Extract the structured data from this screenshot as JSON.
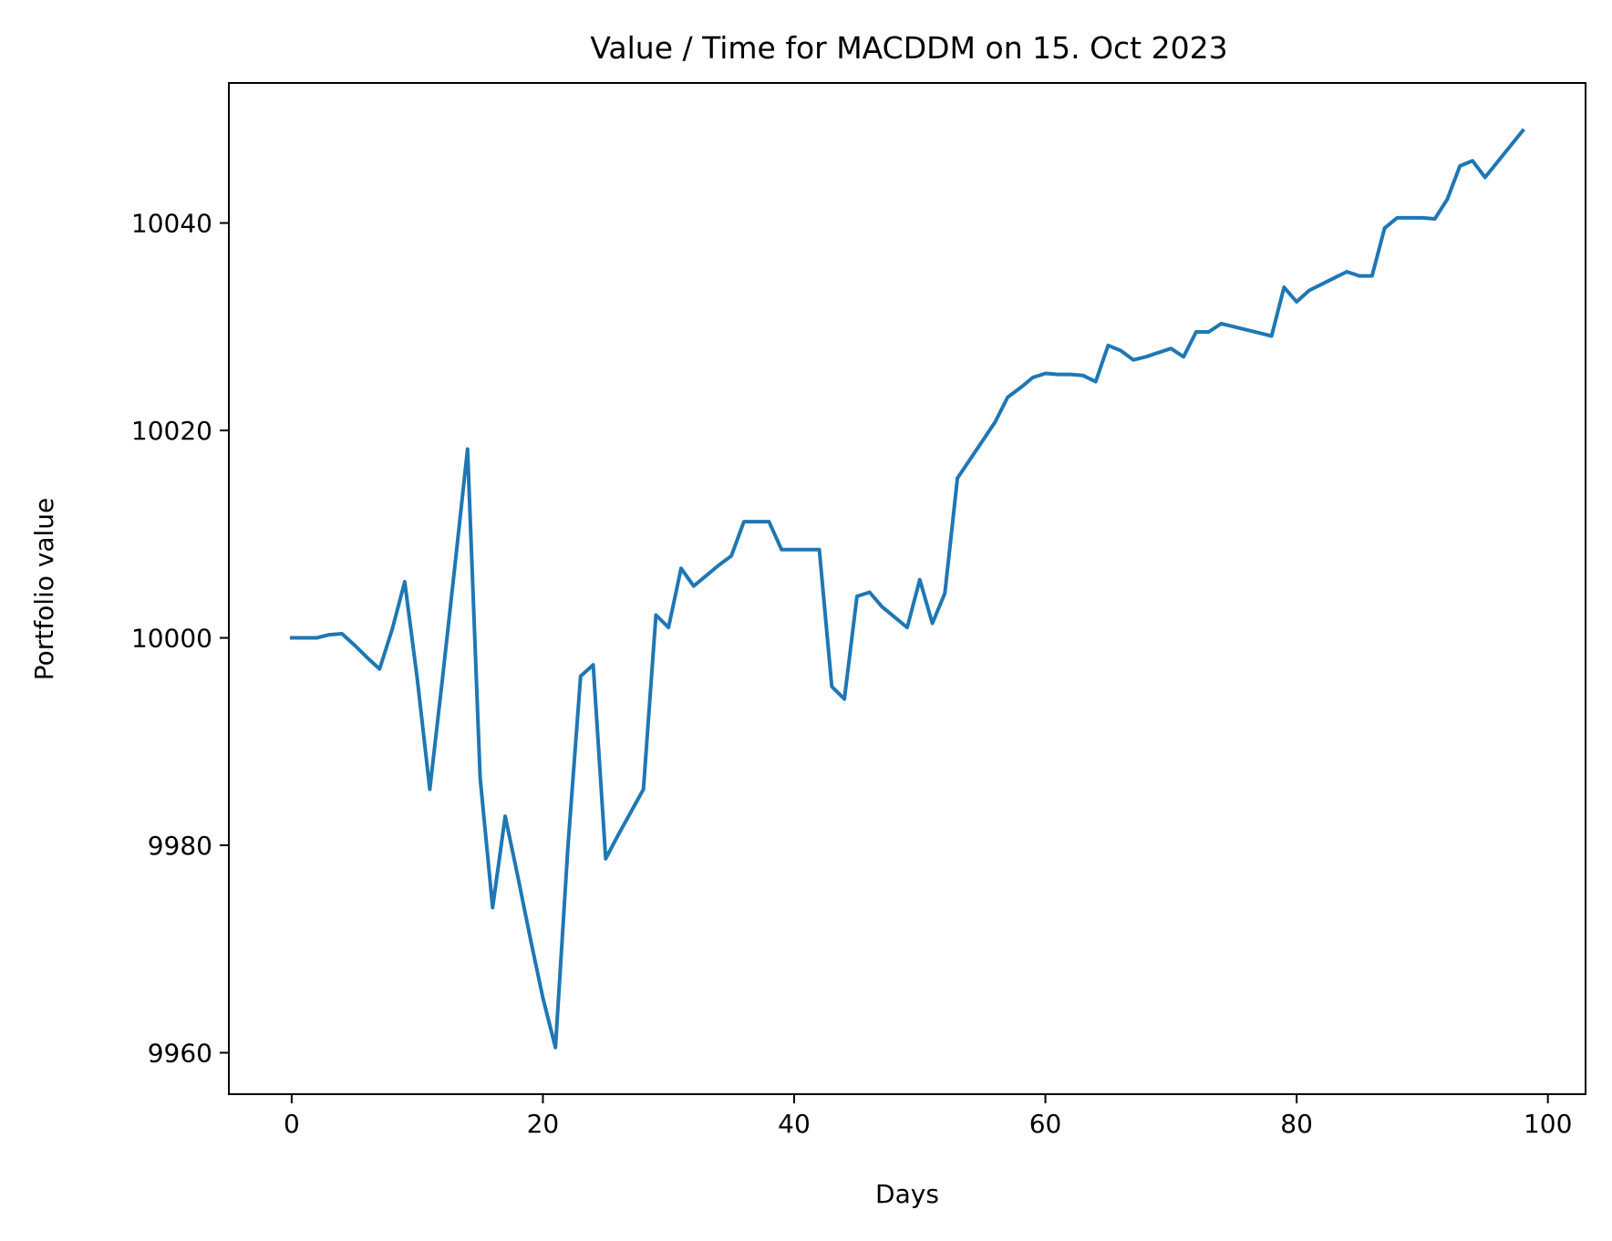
{
  "chart_data": {
    "type": "line",
    "title": "Value / Time for MACDDM on 15. Oct 2023",
    "xlabel": "Days",
    "ylabel": "Portfolio value",
    "xlim": [
      -5,
      103
    ],
    "ylim": [
      9956,
      10053.5
    ],
    "xticks": [
      0,
      20,
      40,
      60,
      80,
      100
    ],
    "yticks": [
      9960,
      9980,
      10000,
      10020,
      10040
    ],
    "grid": false,
    "legend": "none",
    "series": [
      {
        "color": "#1f77b4",
        "x": [
          0,
          1,
          2,
          3,
          4,
          5,
          6,
          7,
          8,
          9,
          10,
          11,
          12,
          13,
          14,
          15,
          16,
          17,
          18,
          19,
          20,
          21,
          22,
          23,
          24,
          25,
          26,
          27,
          28,
          29,
          30,
          31,
          32,
          33,
          34,
          35,
          36,
          37,
          38,
          39,
          40,
          41,
          42,
          43,
          44,
          45,
          46,
          47,
          48,
          49,
          50,
          51,
          52,
          53,
          54,
          55,
          56,
          57,
          58,
          59,
          60,
          61,
          62,
          63,
          64,
          65,
          66,
          67,
          68,
          69,
          70,
          71,
          72,
          73,
          74,
          75,
          76,
          77,
          78,
          79,
          80,
          81,
          82,
          83,
          84,
          85,
          86,
          87,
          88,
          89,
          90,
          91,
          92,
          93,
          94,
          95,
          96,
          97,
          98
        ],
        "values": [
          10000,
          10000,
          10000,
          10000.3,
          10000.4,
          9999.3,
          9998.1,
          9997,
          10000.8,
          10005.4,
          9996,
          9985.4,
          9996,
          10007,
          10018.2,
          9986.5,
          9974,
          9982.8,
          9977,
          9971,
          9965.3,
          9960.5,
          9980,
          9996.3,
          9997.4,
          9978.7,
          9981,
          9983.2,
          9985.4,
          10002.2,
          10001,
          10006.7,
          10005,
          10006,
          10007,
          10007.9,
          10011.2,
          10011.2,
          10011.2,
          10008.5,
          10008.5,
          10008.5,
          10008.5,
          9995.3,
          9994.1,
          10004,
          10004.4,
          10003,
          10002,
          10001,
          10005.6,
          10001.4,
          10004.3,
          10015.4,
          10017.2,
          10019,
          10020.8,
          10023.2,
          10024.1,
          10025.1,
          10025.5,
          10025.4,
          10025.4,
          10025.3,
          10024.7,
          10028.2,
          10027.7,
          10026.8,
          10027.1,
          10027.5,
          10027.9,
          10027.1,
          10029.5,
          10029.5,
          10030.3,
          10030,
          10029.7,
          10029.4,
          10029.1,
          10033.8,
          10032.4,
          10033.5,
          10034.1,
          10034.7,
          10035.3,
          10034.9,
          10034.9,
          10039.5,
          10040.5,
          10040.5,
          10040.5,
          10040.4,
          10042.3,
          10045.5,
          10046,
          10044.4,
          10045.9,
          10047.4,
          10048.9
        ]
      }
    ]
  }
}
